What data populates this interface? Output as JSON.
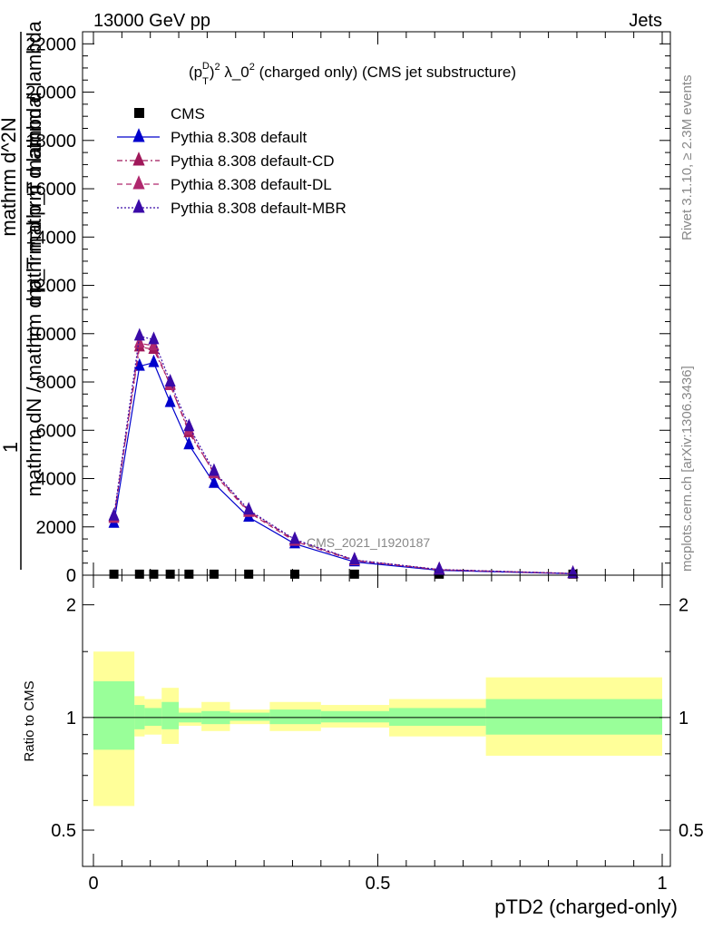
{
  "header": {
    "left": "13000 GeV pp",
    "right": "Jets"
  },
  "side_labels": {
    "rivet": "Rivet 3.1.10, ≥ 2.3M events",
    "mcplots": "mcplots.cern.ch [arXiv:1306.3436]"
  },
  "watermark": "CMS_2021_I1920187",
  "colors": {
    "default": "#0000cc",
    "default_cd": "#a0185a",
    "default_dl": "#b0286e",
    "default_mbr": "#3a0aa8",
    "band_outer": "#ffff99",
    "band_inner": "#99ff99"
  },
  "chart_data": [
    {
      "type": "line",
      "title": "(p_T^D)^2 λ_0^2 (charged only) (CMS jet substructure)",
      "title_parts": {
        "p": "(p",
        "sub": "T",
        "sup": "D",
        "close": ")",
        "exp1": "2",
        "lam": " λ_0",
        "exp2": "2",
        "rest": " (charged only) (CMS jet substructure)"
      },
      "ylabel_lines": [
        "1",
        "mathrm dN / mathrm d p_T mathrm d lambda",
        "mathrm d^2N",
        "mathrm d p_T mathrm d lambda"
      ],
      "xlim": [
        0,
        1
      ],
      "ylim": [
        0,
        22500
      ],
      "y_ticks": [
        0,
        2000,
        4000,
        6000,
        8000,
        10000,
        12000,
        14000,
        16000,
        18000,
        20000,
        22000
      ],
      "y_tick_labels": [
        "0",
        "2000",
        "4000",
        "6000",
        "8000",
        "10000",
        "12000",
        "14000",
        "16000",
        "18000",
        "20000",
        "22000"
      ],
      "legend_placement": "top-left",
      "x": [
        0.036,
        0.081,
        0.106,
        0.135,
        0.168,
        0.212,
        0.273,
        0.354,
        0.459,
        0.608,
        0.843
      ],
      "series": [
        {
          "name": "CMS",
          "marker": "square",
          "values": [
            5,
            5,
            5,
            5,
            5,
            5,
            5,
            5,
            5,
            5,
            5
          ]
        },
        {
          "name": "Pythia 8.308 default",
          "marker": "triangle",
          "line": "solid",
          "values": [
            2150,
            8650,
            8800,
            7150,
            5400,
            3800,
            2400,
            1300,
            550,
            200,
            60
          ]
        },
        {
          "name": "Pythia 8.308 default-CD",
          "marker": "triangle",
          "line": "dashdot",
          "values": [
            2400,
            9450,
            9350,
            7900,
            5900,
            4250,
            2650,
            1450,
            620,
            230,
            70
          ]
        },
        {
          "name": "Pythia 8.308 default-DL",
          "marker": "triangle",
          "line": "dash",
          "values": [
            2350,
            9600,
            9500,
            7850,
            6000,
            4200,
            2600,
            1400,
            600,
            220,
            65
          ]
        },
        {
          "name": "Pythia 8.308 default-MBR",
          "marker": "triangle",
          "line": "dot",
          "values": [
            2450,
            9900,
            9750,
            8000,
            6150,
            4300,
            2700,
            1480,
            630,
            235,
            72
          ]
        }
      ]
    },
    {
      "type": "area",
      "ylabel": "Ratio to CMS",
      "xlabel": "pTD2 (charged-only)",
      "scale": "log",
      "ylim": [
        0.4,
        2.4
      ],
      "y_ticks": [
        0.5,
        1,
        2
      ],
      "y_tick_labels": [
        "0.5",
        "1",
        "2"
      ],
      "x_ticks": [
        0,
        0.5,
        1
      ],
      "x_tick_labels": [
        "0",
        "0.5",
        "1"
      ],
      "bins": [
        {
          "x0": 0.0,
          "x1": 0.072,
          "inner": [
            0.82,
            1.25
          ],
          "outer": [
            0.58,
            1.5
          ]
        },
        {
          "x0": 0.072,
          "x1": 0.09,
          "inner": [
            0.93,
            1.08
          ],
          "outer": [
            0.89,
            1.14
          ]
        },
        {
          "x0": 0.09,
          "x1": 0.12,
          "inner": [
            0.95,
            1.06
          ],
          "outer": [
            0.9,
            1.12
          ]
        },
        {
          "x0": 0.12,
          "x1": 0.15,
          "inner": [
            0.93,
            1.1
          ],
          "outer": [
            0.85,
            1.2
          ]
        },
        {
          "x0": 0.15,
          "x1": 0.19,
          "inner": [
            0.97,
            1.03
          ],
          "outer": [
            0.95,
            1.06
          ]
        },
        {
          "x0": 0.19,
          "x1": 0.24,
          "inner": [
            0.96,
            1.04
          ],
          "outer": [
            0.92,
            1.1
          ]
        },
        {
          "x0": 0.24,
          "x1": 0.31,
          "inner": [
            0.98,
            1.03
          ],
          "outer": [
            0.96,
            1.05
          ]
        },
        {
          "x0": 0.31,
          "x1": 0.4,
          "inner": [
            0.96,
            1.05
          ],
          "outer": [
            0.92,
            1.1
          ]
        },
        {
          "x0": 0.4,
          "x1": 0.52,
          "inner": [
            0.97,
            1.04
          ],
          "outer": [
            0.94,
            1.08
          ]
        },
        {
          "x0": 0.52,
          "x1": 0.69,
          "inner": [
            0.95,
            1.06
          ],
          "outer": [
            0.89,
            1.12
          ]
        },
        {
          "x0": 0.69,
          "x1": 1.0,
          "inner": [
            0.9,
            1.12
          ],
          "outer": [
            0.79,
            1.28
          ]
        }
      ]
    }
  ]
}
